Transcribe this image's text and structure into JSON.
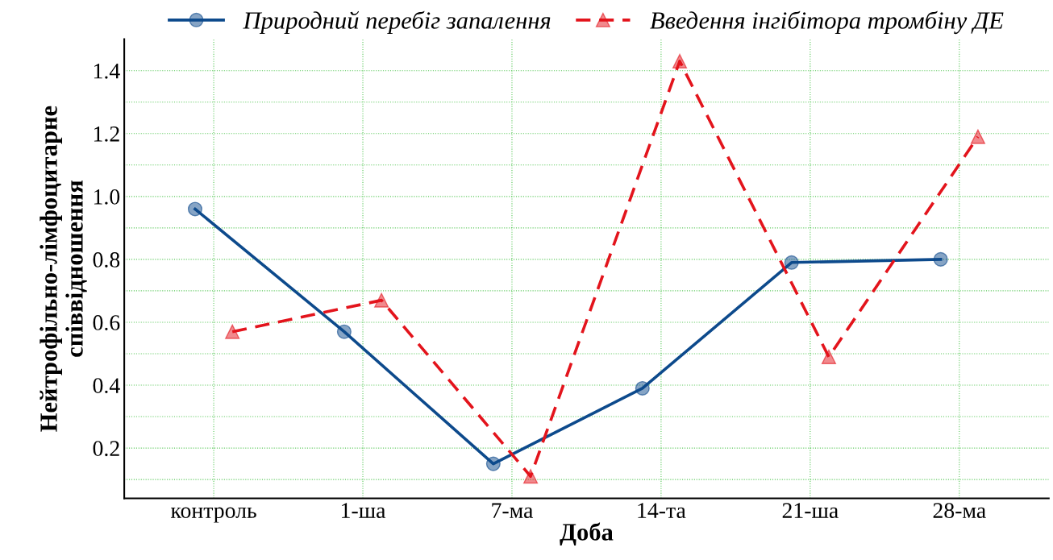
{
  "chart_data": {
    "type": "line",
    "xlabel": "Доба",
    "ylabel": "Нейтрофільно-лімфоцитарне\nспіввідношення",
    "categories": [
      "контроль",
      "1-ша",
      "7-ма",
      "14-та",
      "21-ша",
      "28-ма"
    ],
    "ylim": [
      0.04,
      1.5
    ],
    "yticks": [
      {
        "value": 0.1,
        "label": null
      },
      0.2,
      {
        "value": 0.3,
        "label": null
      },
      0.4,
      {
        "value": 0.5,
        "label": null
      },
      0.6,
      {
        "value": 0.7,
        "label": null
      },
      0.8,
      {
        "value": 0.9,
        "label": null
      },
      {
        "value": 1.0,
        "label": "1.0"
      },
      {
        "value": 1.1,
        "label": null
      },
      1.2,
      {
        "value": 1.3,
        "label": null
      },
      1.4
    ],
    "grid": true,
    "legend": "top",
    "series": [
      {
        "name": "Природний перебіг запалення",
        "color": "#0d4a8c",
        "marker": "circle",
        "line_style": "solid",
        "values": [
          0.96,
          0.57,
          0.15,
          0.39,
          0.79,
          0.8
        ]
      },
      {
        "name": "Введення інгібітора тромбіну ДЕ",
        "color": "#e3141c",
        "marker": "triangle",
        "line_style": "dashed",
        "values": [
          0.57,
          0.67,
          0.11,
          1.43,
          0.49,
          1.19
        ]
      }
    ]
  }
}
